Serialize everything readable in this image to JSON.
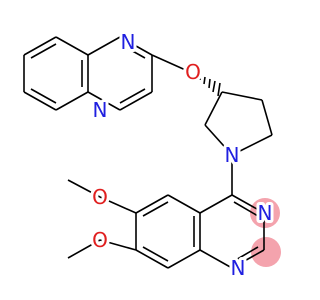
{
  "atom_labels": [
    "N",
    "N",
    "O",
    "N",
    "N",
    "N",
    "O",
    "O"
  ]
}
